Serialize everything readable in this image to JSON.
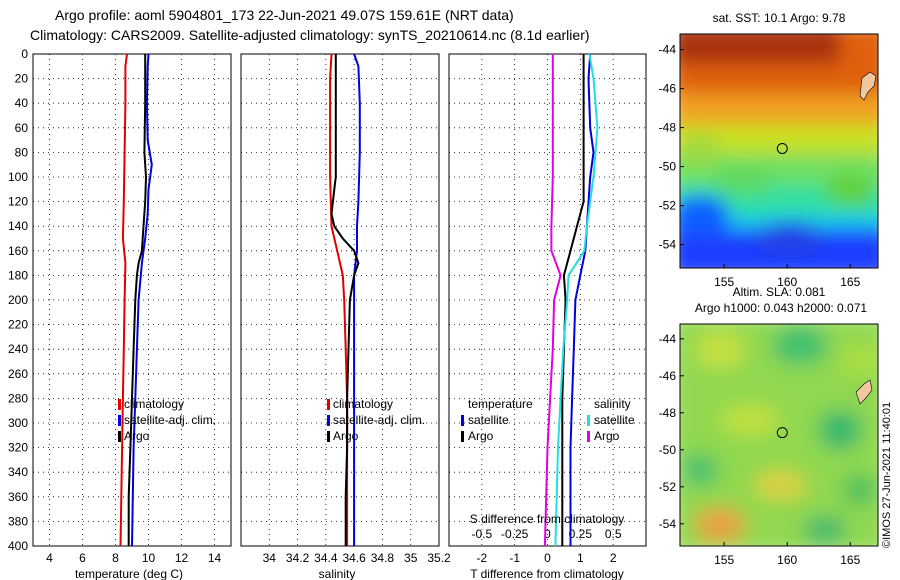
{
  "header": {
    "line1": "Argo profile: aoml 5904801_173 22-Jun-2021 49.07S 159.61E (NRT data)",
    "line2": "Climatology: CARS2009. Satellite-adjusted climatology: synTS_20210614.nc (8.1d earlier)"
  },
  "colors": {
    "climatology": "#e00000",
    "satellite": "#0000e0",
    "argo": "#000000",
    "s_satellite": "#20e0e0",
    "s_argo": "#e000e0"
  },
  "chart_data": [
    {
      "type": "line",
      "id": "temperature",
      "xlabel": "temperature (deg C)",
      "ylabel": "",
      "xlim": [
        3,
        15
      ],
      "ylim": [
        400,
        0
      ],
      "xticks": [
        "4",
        "6",
        "8",
        "10",
        "12",
        "14"
      ],
      "xtick_values": [
        4,
        6,
        8,
        10,
        12,
        14
      ],
      "yticks": [
        "0",
        "20",
        "40",
        "60",
        "80",
        "100",
        "120",
        "140",
        "160",
        "180",
        "200",
        "220",
        "240",
        "260",
        "280",
        "300",
        "320",
        "340",
        "360",
        "380",
        "400"
      ],
      "ytick_values": [
        0,
        20,
        40,
        60,
        80,
        100,
        120,
        140,
        160,
        180,
        200,
        220,
        240,
        260,
        280,
        300,
        320,
        340,
        360,
        380,
        400
      ],
      "legend": [
        "climatology",
        "satellite-adj. clim.",
        "Argo"
      ],
      "series": [
        {
          "name": "climatology",
          "color": "#e00000",
          "depth": [
            0,
            10,
            40,
            80,
            120,
            150,
            170,
            200,
            240,
            280,
            320,
            360,
            400
          ],
          "values": [
            8.7,
            8.6,
            8.6,
            8.55,
            8.5,
            8.45,
            8.6,
            8.55,
            8.5,
            8.45,
            8.4,
            8.35,
            8.3
          ]
        },
        {
          "name": "satellite-adj. clim.",
          "color": "#0000e0",
          "depth": [
            0,
            10,
            40,
            70,
            90,
            110,
            130,
            150,
            170,
            200,
            240,
            280,
            320,
            360,
            400
          ],
          "values": [
            10.0,
            9.95,
            9.9,
            9.95,
            10.2,
            10.0,
            9.95,
            9.8,
            9.6,
            9.4,
            9.3,
            9.2,
            9.1,
            9.05,
            9.0
          ]
        },
        {
          "name": "Argo",
          "color": "#000000",
          "depth": [
            0,
            10,
            40,
            80,
            100,
            120,
            140,
            160,
            170,
            180,
            200,
            240,
            280,
            320,
            360,
            400
          ],
          "values": [
            9.8,
            9.8,
            9.8,
            9.75,
            9.85,
            9.8,
            9.7,
            9.6,
            9.4,
            9.3,
            9.2,
            9.1,
            9.0,
            8.9,
            8.8,
            8.8
          ]
        }
      ]
    },
    {
      "type": "line",
      "id": "salinity",
      "xlabel": "salinity",
      "ylabel": "",
      "xlim": [
        33.8,
        35.2
      ],
      "ylim": [
        400,
        0
      ],
      "xticks": [
        "34",
        "34.2",
        "34.4",
        "34.6",
        "34.8",
        "35",
        "35.2"
      ],
      "xtick_values": [
        34,
        34.2,
        34.4,
        34.6,
        34.8,
        35,
        35.2
      ],
      "legend": [
        "climatology",
        "satellite-adj. clim.",
        "Argo"
      ],
      "series": [
        {
          "name": "climatology",
          "color": "#e00000",
          "depth": [
            0,
            20,
            60,
            100,
            140,
            160,
            180,
            200,
            240,
            280,
            320,
            360,
            400
          ],
          "values": [
            34.44,
            34.43,
            34.43,
            34.43,
            34.44,
            34.48,
            34.52,
            34.53,
            34.54,
            34.55,
            34.55,
            34.55,
            34.55
          ]
        },
        {
          "name": "satellite-adj. clim.",
          "color": "#0000e0",
          "depth": [
            0,
            10,
            40,
            80,
            120,
            140,
            160,
            180,
            200,
            240,
            280,
            320,
            360,
            400
          ],
          "values": [
            34.6,
            34.63,
            34.64,
            34.64,
            34.63,
            34.62,
            34.62,
            34.6,
            34.6,
            34.6,
            34.6,
            34.6,
            34.6,
            34.6
          ]
        },
        {
          "name": "Argo",
          "color": "#000000",
          "depth": [
            0,
            20,
            60,
            100,
            110,
            120,
            130,
            140,
            150,
            160,
            170,
            180,
            200,
            240,
            280,
            320,
            360,
            400
          ],
          "values": [
            34.47,
            34.47,
            34.47,
            34.47,
            34.46,
            34.45,
            34.44,
            34.46,
            34.52,
            34.6,
            34.63,
            34.6,
            34.57,
            34.56,
            34.55,
            34.55,
            34.54,
            34.54
          ]
        }
      ]
    },
    {
      "type": "line",
      "id": "difference",
      "xlabel": "T difference from climatology",
      "ylabel": "",
      "xlim": [
        -3,
        3
      ],
      "ylim": [
        400,
        0
      ],
      "xticks": [
        "-2",
        "-1",
        "0",
        "1",
        "2"
      ],
      "xtick_values": [
        -2,
        -1,
        0,
        1,
        2
      ],
      "top_axis_label": "S difference from climatology",
      "top_ticks": [
        "-0.5",
        "-0.25",
        "0",
        "0.25",
        "0.5"
      ],
      "top_tick_values": [
        -0.5,
        -0.25,
        0,
        0.25,
        0.5
      ],
      "legend_temperature": {
        "title": "temperature",
        "items": [
          "satellite",
          "Argo"
        ]
      },
      "legend_salinity": {
        "title": "salinity",
        "items": [
          "satellite",
          "Argo"
        ]
      },
      "series": [
        {
          "name": "temperature satellite",
          "color": "#0000e0",
          "depth": [
            0,
            20,
            60,
            80,
            100,
            140,
            160,
            180,
            200,
            240,
            280,
            320,
            360,
            400
          ],
          "values": [
            1.3,
            1.25,
            1.3,
            1.4,
            1.3,
            1.2,
            1.15,
            1.0,
            0.85,
            0.8,
            0.75,
            0.7,
            0.7,
            0.7
          ]
        },
        {
          "name": "temperature Argo",
          "color": "#000000",
          "depth": [
            0,
            20,
            60,
            80,
            100,
            120,
            140,
            160,
            180,
            200,
            240,
            280,
            320,
            360,
            400
          ],
          "values": [
            1.1,
            1.1,
            1.1,
            1.1,
            1.1,
            1.1,
            0.9,
            0.7,
            0.5,
            0.55,
            0.5,
            0.45,
            0.45,
            0.45,
            0.45
          ]
        },
        {
          "name": "salinity satellite",
          "color": "#20e0e0",
          "depth": [
            0,
            20,
            60,
            100,
            140,
            160,
            180,
            200,
            240,
            280,
            320,
            360,
            400
          ],
          "values": [
            0.32,
            0.35,
            0.38,
            0.35,
            0.3,
            0.28,
            0.16,
            0.15,
            0.12,
            0.1,
            0.08,
            0.07,
            0.06
          ]
        },
        {
          "name": "salinity Argo",
          "color": "#e000e0",
          "depth": [
            0,
            20,
            60,
            100,
            140,
            160,
            180,
            200,
            240,
            280,
            320,
            360,
            400
          ],
          "values": [
            0.04,
            0.04,
            0.04,
            0.04,
            0.03,
            0.03,
            0.1,
            0.05,
            0.04,
            0.02,
            0.0,
            -0.01,
            -0.02
          ]
        }
      ]
    }
  ],
  "maps": {
    "sst": {
      "title": "sat. SST: 10.1 Argo: 9.78",
      "lat_ticks": [
        "-44",
        "-46",
        "-48",
        "-50",
        "-52",
        "-54"
      ],
      "lon_ticks": [
        "155",
        "160",
        "165"
      ]
    },
    "sla": {
      "title_line1": "Altim. SLA: 0.081",
      "title_line2": "Argo h1000: 0.043 h2000: 0.071",
      "lat_ticks": [
        "-44",
        "-46",
        "-48",
        "-50",
        "-52",
        "-54"
      ],
      "lon_ticks": [
        "155",
        "160",
        "165"
      ]
    },
    "argo_marker": {
      "lon": 159.61,
      "lat": -49.07
    }
  },
  "footer": {
    "credit": "©IMOS 27-Jun-2021 11:40:01"
  }
}
